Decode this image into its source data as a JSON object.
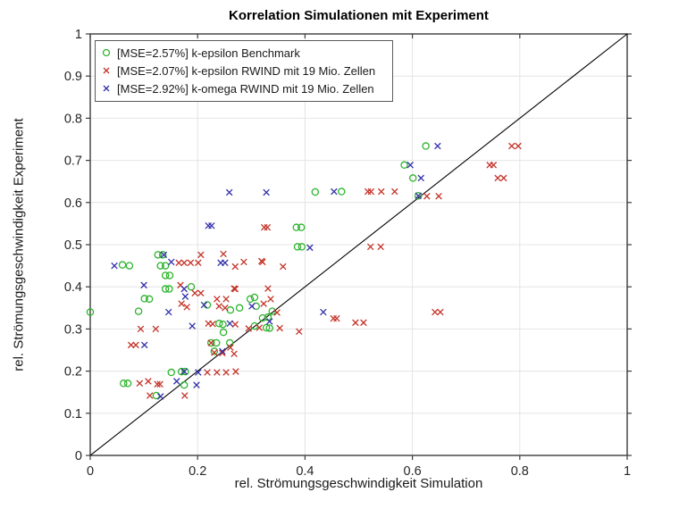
{
  "chart_data": {
    "type": "scatter",
    "title": "Korrelation Simulationen mit Experiment",
    "xlabel": "rel. Strömungsgeschwindigkeit Simulation",
    "ylabel": "rel. Strömungsgeschwindigkeit Experiment",
    "xlim": [
      0,
      1
    ],
    "ylim": [
      0,
      1
    ],
    "x_ticks": [
      0,
      0.2,
      0.4,
      0.6,
      0.8,
      1
    ],
    "x_tick_labels": [
      "0",
      "0.2",
      "0.4",
      "0.6",
      "0.8",
      "1"
    ],
    "y_ticks": [
      0,
      0.1,
      0.2,
      0.3,
      0.4,
      0.5,
      0.6,
      0.7,
      0.8,
      0.9,
      1
    ],
    "y_tick_labels": [
      "0",
      "0.1",
      "0.2",
      "0.3",
      "0.4",
      "0.5",
      "0.6",
      "0.7",
      "0.8",
      "0.9",
      "1"
    ],
    "grid": {
      "on": true,
      "color": "#e4e4e4",
      "x_step": 0.2,
      "y_step": 0.1
    },
    "axis_color": "#3c3c3c",
    "tick_label_color": "#262626",
    "legend_position": "top-left",
    "reference_line": {
      "from": [
        0,
        0
      ],
      "to": [
        1,
        1
      ],
      "color": "#000000"
    },
    "series": [
      {
        "name": "[MSE=2.57%] k-epsilon Benchmark",
        "marker": "circle",
        "color": "#2db42d",
        "points": [
          [
            0.0,
            0.34
          ],
          [
            0.06,
            0.452
          ],
          [
            0.073,
            0.45
          ],
          [
            0.126,
            0.476
          ],
          [
            0.135,
            0.476
          ],
          [
            0.131,
            0.45
          ],
          [
            0.14,
            0.45
          ],
          [
            0.101,
            0.372
          ],
          [
            0.11,
            0.371
          ],
          [
            0.14,
            0.427
          ],
          [
            0.148,
            0.427
          ],
          [
            0.14,
            0.395
          ],
          [
            0.147,
            0.395
          ],
          [
            0.188,
            0.4
          ],
          [
            0.09,
            0.342
          ],
          [
            0.062,
            0.171
          ],
          [
            0.07,
            0.171
          ],
          [
            0.123,
            0.142
          ],
          [
            0.175,
            0.167
          ],
          [
            0.151,
            0.197
          ],
          [
            0.17,
            0.199
          ],
          [
            0.177,
            0.199
          ],
          [
            0.218,
            0.357
          ],
          [
            0.225,
            0.267
          ],
          [
            0.235,
            0.267
          ],
          [
            0.26,
            0.267
          ],
          [
            0.231,
            0.247
          ],
          [
            0.24,
            0.313
          ],
          [
            0.247,
            0.311
          ],
          [
            0.248,
            0.292
          ],
          [
            0.261,
            0.345
          ],
          [
            0.278,
            0.35
          ],
          [
            0.298,
            0.371
          ],
          [
            0.306,
            0.375
          ],
          [
            0.309,
            0.354
          ],
          [
            0.306,
            0.307
          ],
          [
            0.328,
            0.303
          ],
          [
            0.334,
            0.302
          ],
          [
            0.339,
            0.342
          ],
          [
            0.321,
            0.326
          ],
          [
            0.331,
            0.328
          ],
          [
            0.384,
            0.541
          ],
          [
            0.393,
            0.541
          ],
          [
            0.386,
            0.495
          ],
          [
            0.394,
            0.495
          ],
          [
            0.419,
            0.625
          ],
          [
            0.468,
            0.626
          ],
          [
            0.585,
            0.689
          ],
          [
            0.601,
            0.658
          ],
          [
            0.611,
            0.616
          ],
          [
            0.625,
            0.734
          ]
        ]
      },
      {
        "name": "[MSE=2.07%] k-epsilon RWIND mit 19 Mio. Zellen",
        "marker": "x",
        "color": "#c43228",
        "points": [
          [
            0.165,
            0.457
          ],
          [
            0.175,
            0.457
          ],
          [
            0.187,
            0.457
          ],
          [
            0.201,
            0.457
          ],
          [
            0.206,
            0.476
          ],
          [
            0.248,
            0.478
          ],
          [
            0.27,
            0.448
          ],
          [
            0.286,
            0.459
          ],
          [
            0.319,
            0.461
          ],
          [
            0.321,
            0.459
          ],
          [
            0.359,
            0.448
          ],
          [
            0.168,
            0.404
          ],
          [
            0.27,
            0.395
          ],
          [
            0.195,
            0.385
          ],
          [
            0.206,
            0.385
          ],
          [
            0.268,
            0.396
          ],
          [
            0.094,
            0.3
          ],
          [
            0.122,
            0.3
          ],
          [
            0.076,
            0.262
          ],
          [
            0.085,
            0.262
          ],
          [
            0.092,
            0.171
          ],
          [
            0.108,
            0.176
          ],
          [
            0.125,
            0.169
          ],
          [
            0.13,
            0.169
          ],
          [
            0.111,
            0.142
          ],
          [
            0.176,
            0.142
          ],
          [
            0.17,
            0.36
          ],
          [
            0.18,
            0.352
          ],
          [
            0.236,
            0.371
          ],
          [
            0.253,
            0.371
          ],
          [
            0.24,
            0.354
          ],
          [
            0.251,
            0.35
          ],
          [
            0.22,
            0.313
          ],
          [
            0.228,
            0.312
          ],
          [
            0.27,
            0.311
          ],
          [
            0.295,
            0.301
          ],
          [
            0.315,
            0.303
          ],
          [
            0.323,
            0.36
          ],
          [
            0.336,
            0.371
          ],
          [
            0.331,
            0.396
          ],
          [
            0.348,
            0.339
          ],
          [
            0.353,
            0.302
          ],
          [
            0.389,
            0.294
          ],
          [
            0.225,
            0.267
          ],
          [
            0.231,
            0.244
          ],
          [
            0.246,
            0.243
          ],
          [
            0.268,
            0.241
          ],
          [
            0.261,
            0.256
          ],
          [
            0.218,
            0.197
          ],
          [
            0.236,
            0.197
          ],
          [
            0.253,
            0.197
          ],
          [
            0.271,
            0.199
          ],
          [
            0.453,
            0.325
          ],
          [
            0.459,
            0.325
          ],
          [
            0.494,
            0.315
          ],
          [
            0.509,
            0.315
          ],
          [
            0.642,
            0.34
          ],
          [
            0.652,
            0.34
          ],
          [
            0.522,
            0.495
          ],
          [
            0.541,
            0.495
          ],
          [
            0.324,
            0.541
          ],
          [
            0.33,
            0.541
          ],
          [
            0.517,
            0.626
          ],
          [
            0.523,
            0.626
          ],
          [
            0.542,
            0.626
          ],
          [
            0.567,
            0.626
          ],
          [
            0.627,
            0.615
          ],
          [
            0.649,
            0.615
          ],
          [
            0.759,
            0.658
          ],
          [
            0.77,
            0.658
          ],
          [
            0.744,
            0.689
          ],
          [
            0.751,
            0.689
          ],
          [
            0.785,
            0.734
          ],
          [
            0.797,
            0.734
          ]
        ]
      },
      {
        "name": "[MSE=2.92%] k-omega RWIND mit 19 Mio. Zellen",
        "marker": "x",
        "color": "#3230aa",
        "points": [
          [
            0.045,
            0.45
          ],
          [
            0.137,
            0.476
          ],
          [
            0.151,
            0.459
          ],
          [
            0.1,
            0.404
          ],
          [
            0.175,
            0.395
          ],
          [
            0.146,
            0.34
          ],
          [
            0.101,
            0.262
          ],
          [
            0.161,
            0.176
          ],
          [
            0.131,
            0.14
          ],
          [
            0.198,
            0.167
          ],
          [
            0.175,
            0.199
          ],
          [
            0.201,
            0.197
          ],
          [
            0.212,
            0.357
          ],
          [
            0.243,
            0.457
          ],
          [
            0.251,
            0.457
          ],
          [
            0.19,
            0.307
          ],
          [
            0.26,
            0.313
          ],
          [
            0.301,
            0.354
          ],
          [
            0.334,
            0.318
          ],
          [
            0.177,
            0.377
          ],
          [
            0.246,
            0.247
          ],
          [
            0.22,
            0.545
          ],
          [
            0.226,
            0.545
          ],
          [
            0.259,
            0.624
          ],
          [
            0.328,
            0.624
          ],
          [
            0.409,
            0.493
          ],
          [
            0.434,
            0.34
          ],
          [
            0.454,
            0.626
          ],
          [
            0.596,
            0.689
          ],
          [
            0.616,
            0.658
          ],
          [
            0.611,
            0.616
          ],
          [
            0.647,
            0.734
          ]
        ]
      }
    ]
  }
}
